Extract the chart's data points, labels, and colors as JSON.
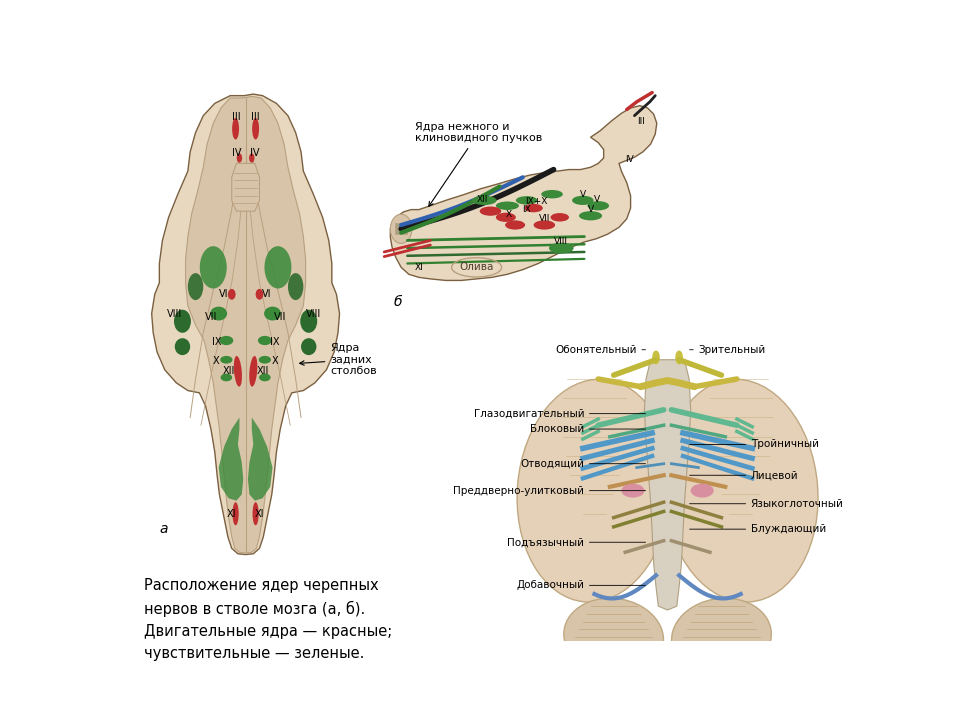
{
  "background_color": "#ffffff",
  "caption_lines": [
    "Расположение ядер черепных",
    "нервов в стволе мозга (а, б).",
    "Двигательные ядра — красные;",
    "чувствительные — зеленые."
  ],
  "caption_fontsize": 10.5,
  "label_zadnih": "Ядра\nзадних\nстолбов",
  "label_yadra_nezh": "Ядра нежного и\nклиновидного пучков",
  "skin_color": "#d8c4a8",
  "skin_color2": "#cbb898",
  "skin_dark": "#b8a080",
  "skin_light": "#e8d8c0",
  "red_color": "#c03030",
  "green_dark": "#2d6a2d",
  "green_mid": "#3a8a3a",
  "outline": "#7a6040"
}
